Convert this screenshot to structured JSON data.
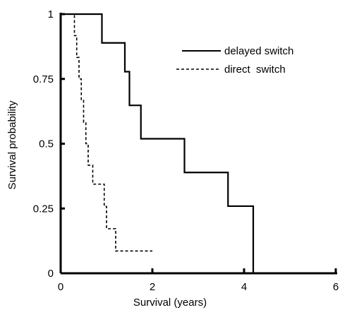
{
  "chart_data": {
    "type": "line",
    "subtype": "step (Kaplan-Meier survival curve)",
    "title": "",
    "xlabel": "Survival (years)",
    "ylabel": "Survival probability",
    "xlim": [
      0,
      6
    ],
    "ylim": [
      0,
      1
    ],
    "x_ticks": [
      0,
      2,
      4,
      6
    ],
    "x_tick_labels": [
      "0",
      "2",
      "4",
      "6"
    ],
    "y_ticks": [
      0,
      0.25,
      0.5,
      0.75,
      1
    ],
    "y_tick_labels": [
      "0",
      "0.25",
      "0.5",
      "0.75",
      "1"
    ],
    "grid": false,
    "legend_position": "top-right",
    "series": [
      {
        "name": "delayed switch",
        "style": "solid",
        "color": "#000000",
        "x": [
          0,
          0.9,
          0.9,
          1.4,
          1.4,
          1.5,
          1.5,
          1.75,
          1.75,
          2.7,
          2.7,
          3.65,
          3.65,
          4.2,
          4.2
        ],
        "y": [
          1,
          1,
          0.889,
          0.889,
          0.778,
          0.778,
          0.648,
          0.648,
          0.519,
          0.519,
          0.389,
          0.389,
          0.259,
          0.259,
          0.13
        ],
        "steps": [
          {
            "x": 0,
            "y": 1
          },
          {
            "x": 0.9,
            "y": 0.889
          },
          {
            "x": 1.4,
            "y": 0.778
          },
          {
            "x": 1.5,
            "y": 0.648
          },
          {
            "x": 1.75,
            "y": 0.519
          },
          {
            "x": 2.7,
            "y": 0.389
          },
          {
            "x": 3.65,
            "y": 0.259
          },
          {
            "x": 4.2,
            "y": 0.13
          },
          {
            "x": 4.2,
            "y": 0
          }
        ]
      },
      {
        "name": "direct  switch",
        "style": "dashed",
        "color": "#000000",
        "steps": [
          {
            "x": 0,
            "y": 1
          },
          {
            "x": 0.3,
            "y": 0.917
          },
          {
            "x": 0.35,
            "y": 0.833
          },
          {
            "x": 0.4,
            "y": 0.75
          },
          {
            "x": 0.45,
            "y": 0.667
          },
          {
            "x": 0.5,
            "y": 0.583
          },
          {
            "x": 0.55,
            "y": 0.5
          },
          {
            "x": 0.6,
            "y": 0.417
          },
          {
            "x": 0.7,
            "y": 0.344
          },
          {
            "x": 0.95,
            "y": 0.258
          },
          {
            "x": 1.0,
            "y": 0.172
          },
          {
            "x": 1.2,
            "y": 0.086
          },
          {
            "x": 2.0,
            "y": 0.086
          }
        ]
      }
    ]
  }
}
